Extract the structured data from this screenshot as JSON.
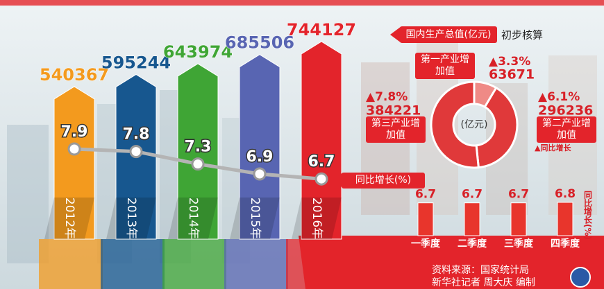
{
  "chart_data": [
    {
      "type": "bar",
      "categories": [
        "2012年",
        "2013年",
        "2014年",
        "2015年",
        "2016年"
      ],
      "subtitle": "初步核算",
      "series": [
        {
          "name": "国内生产总值(亿元)",
          "colors": [
            "#f39a1e",
            "#17578f",
            "#3fa535",
            "#5865b2",
            "#e3242b"
          ],
          "values": [
            540367,
            595244,
            643974,
            685506,
            744127
          ]
        },
        {
          "name": "同比增长(%)",
          "type": "line",
          "axis": "y2",
          "color": "#b4b4b4",
          "values": [
            7.9,
            7.8,
            7.3,
            6.9,
            6.7
          ]
        }
      ]
    },
    {
      "type": "pie",
      "title": "(亿元)",
      "legend": "▲同比增长",
      "categories": [
        "第一产业增加值",
        "第二产业增加值",
        "第三产业增加值"
      ],
      "values": [
        63671,
        296236,
        384221
      ],
      "colors": [
        "#ef8a86",
        "#e0393a",
        "#e0393a"
      ],
      "growth": {
        "values": [
          3.3,
          6.1,
          7.8
        ],
        "value_labels": [
          "▲3.3%",
          "▲6.1%",
          "▲7.8%"
        ]
      }
    },
    {
      "type": "bar",
      "title": "同比增长(%)",
      "categories": [
        "一季度",
        "二季度",
        "三季度",
        "四季度"
      ],
      "values": [
        6.7,
        6.7,
        6.7,
        6.8
      ],
      "color": "#e8352c"
    }
  ],
  "source": [
    "资料来源：国家统计局",
    "新华社记者 周大庆 编制"
  ]
}
